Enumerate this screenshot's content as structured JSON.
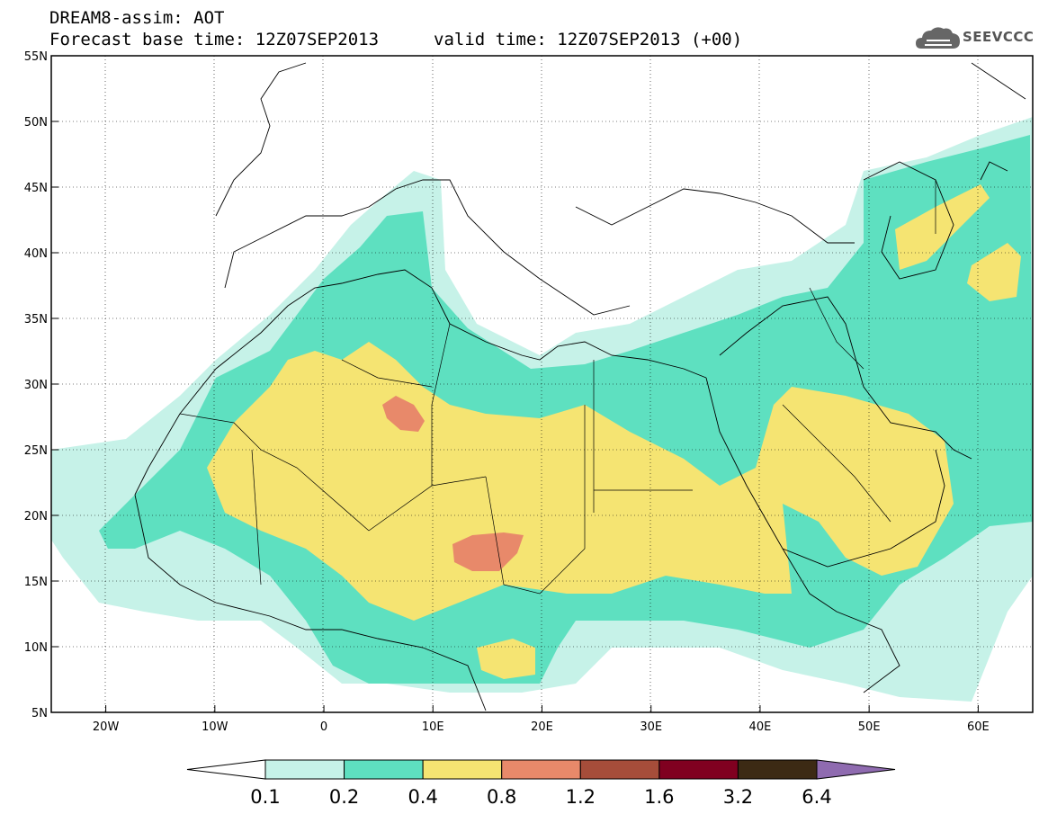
{
  "header": {
    "line1": "DREAM8-assim: AOT",
    "line2": "Forecast base time: 12Z07SEP2013",
    "valid": "valid time: 12Z07SEP2013 (+00)",
    "logo_text": "SEEVCCC",
    "logo_icon": "cloud-icon"
  },
  "map": {
    "lon_range": [
      -25,
      65
    ],
    "lat_range": [
      5,
      55
    ],
    "x_ticks": [
      "20W",
      "10W",
      "0",
      "10E",
      "20E",
      "30E",
      "40E",
      "50E",
      "60E"
    ],
    "y_ticks": [
      "55N",
      "50N",
      "45N",
      "40N",
      "35N",
      "30N",
      "25N",
      "20N",
      "15N",
      "10N",
      "5N"
    ]
  },
  "colorbar": {
    "labels": [
      "0.1",
      "0.2",
      "0.4",
      "0.8",
      "1.2",
      "1.6",
      "3.2",
      "6.4"
    ],
    "colors": [
      "#ffffff",
      "#c6f2e8",
      "#5ee0c0",
      "#f5e472",
      "#e8896a",
      "#a64d3a",
      "#800020",
      "#3c2a14",
      "#8f6bb0"
    ]
  }
}
